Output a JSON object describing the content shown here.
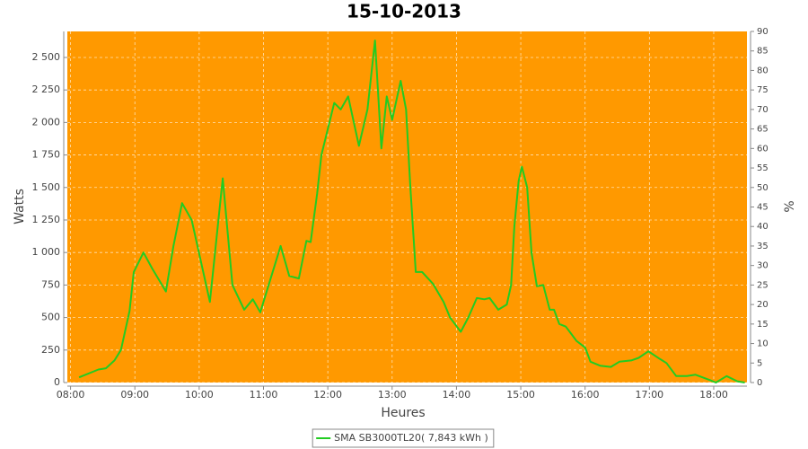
{
  "chart_data": {
    "type": "line",
    "title": "15-10-2013",
    "x_label": "Heures",
    "y_label": "Watts",
    "y2_label": "%",
    "x": [
      "08:08",
      "08:26",
      "08:33",
      "08:41",
      "08:47",
      "08:55",
      "08:59",
      "09:08",
      "09:16",
      "09:29",
      "09:36",
      "09:44",
      "09:53",
      "10:10",
      "10:22",
      "10:31",
      "10:42",
      "10:50",
      "10:57",
      "11:16",
      "11:24",
      "11:33",
      "11:40",
      "11:44",
      "11:50",
      "11:54",
      "12:06",
      "12:12",
      "12:19",
      "12:29",
      "12:37",
      "12:44",
      "12:50",
      "12:55",
      "13:00",
      "13:08",
      "13:13",
      "13:17",
      "13:22",
      "13:28",
      "13:38",
      "13:48",
      "13:54",
      "14:04",
      "14:11",
      "14:19",
      "14:26",
      "14:31",
      "14:39",
      "14:47",
      "14:51",
      "14:54",
      "14:58",
      "15:01",
      "15:06",
      "15:10",
      "15:15",
      "15:21",
      "15:27",
      "15:31",
      "15:36",
      "15:42",
      "15:52",
      "16:00",
      "16:05",
      "16:14",
      "16:24",
      "16:32",
      "16:43",
      "16:50",
      "16:59",
      "17:10",
      "17:16",
      "17:25",
      "17:35",
      "17:43",
      "17:56",
      "18:02",
      "18:12",
      "18:22",
      "18:29"
    ],
    "series": [
      {
        "name": "SMA SB3000TL20( 7,843 kWh )",
        "color": "#22cc22",
        "values": [
          40,
          100,
          110,
          170,
          250,
          550,
          850,
          1000,
          880,
          700,
          1050,
          1380,
          1250,
          620,
          1570,
          750,
          560,
          640,
          540,
          1050,
          820,
          800,
          1090,
          1080,
          1450,
          1750,
          2150,
          2100,
          2200,
          1820,
          2100,
          2630,
          1800,
          2200,
          2020,
          2320,
          2100,
          1500,
          850,
          850,
          760,
          620,
          500,
          390,
          500,
          650,
          640,
          650,
          560,
          600,
          750,
          1200,
          1550,
          1660,
          1500,
          1000,
          740,
          750,
          560,
          560,
          450,
          430,
          320,
          270,
          160,
          130,
          120,
          160,
          170,
          190,
          240,
          180,
          150,
          50,
          50,
          60,
          20,
          0,
          50,
          10,
          0
        ]
      }
    ],
    "xlim": [
      "07:57",
      "18:31"
    ],
    "xticks": [
      "08:00",
      "09:00",
      "10:00",
      "11:00",
      "12:00",
      "13:00",
      "14:00",
      "15:00",
      "16:00",
      "17:00",
      "18:00"
    ],
    "ylim": [
      0,
      2700
    ],
    "yticks": [
      0,
      250,
      500,
      750,
      {
        "value": 1000,
        "label": "1 000"
      },
      {
        "value": 1250,
        "label": "1 250"
      },
      {
        "value": 1500,
        "label": "1 500"
      },
      {
        "value": 1750,
        "label": "1 750"
      },
      {
        "value": 2000,
        "label": "2 000"
      },
      {
        "value": 2250,
        "label": "2 250"
      },
      {
        "value": 2500,
        "label": "2 500"
      }
    ],
    "y2lim": [
      0,
      90
    ],
    "y2ticks": [
      0,
      5,
      10,
      15,
      20,
      25,
      30,
      35,
      40,
      45,
      50,
      55,
      60,
      65,
      70,
      75,
      80,
      85,
      90
    ],
    "grid": true,
    "plot_background": "#ff9900",
    "legend": "bottom"
  }
}
